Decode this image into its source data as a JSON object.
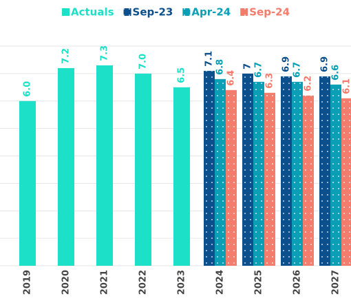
{
  "chart_data": {
    "type": "bar",
    "categories": [
      "2019",
      "2020",
      "2021",
      "2022",
      "2023",
      "2024",
      "2025",
      "2026",
      "2027"
    ],
    "series": [
      {
        "name": "Actuals",
        "color": "#1de0c8",
        "values": [
          6.0,
          7.2,
          7.3,
          7.0,
          6.5,
          null,
          null,
          null,
          null
        ],
        "value_labels": [
          "6.0",
          "7.2",
          "7.3",
          "7.0",
          "6.5",
          null,
          null,
          null,
          null
        ]
      },
      {
        "name": "Sep-23",
        "color": "#0b4f8c",
        "values": [
          null,
          null,
          null,
          null,
          null,
          7.1,
          7.0,
          6.9,
          6.9
        ]
      },
      {
        "name": "Apr-24",
        "color": "#0a9fb5",
        "values": [
          null,
          null,
          null,
          null,
          null,
          6.8,
          6.7,
          6.7,
          6.6
        ]
      },
      {
        "name": "Sep-24",
        "color": "#f47c6c",
        "values": [
          null,
          null,
          null,
          null,
          null,
          6.4,
          6.3,
          6.2,
          6.1
        ]
      }
    ],
    "ylim": [
      0,
      8
    ],
    "yticks": [
      0,
      1,
      2,
      3,
      4,
      5,
      6,
      7,
      8
    ],
    "grid": true
  }
}
